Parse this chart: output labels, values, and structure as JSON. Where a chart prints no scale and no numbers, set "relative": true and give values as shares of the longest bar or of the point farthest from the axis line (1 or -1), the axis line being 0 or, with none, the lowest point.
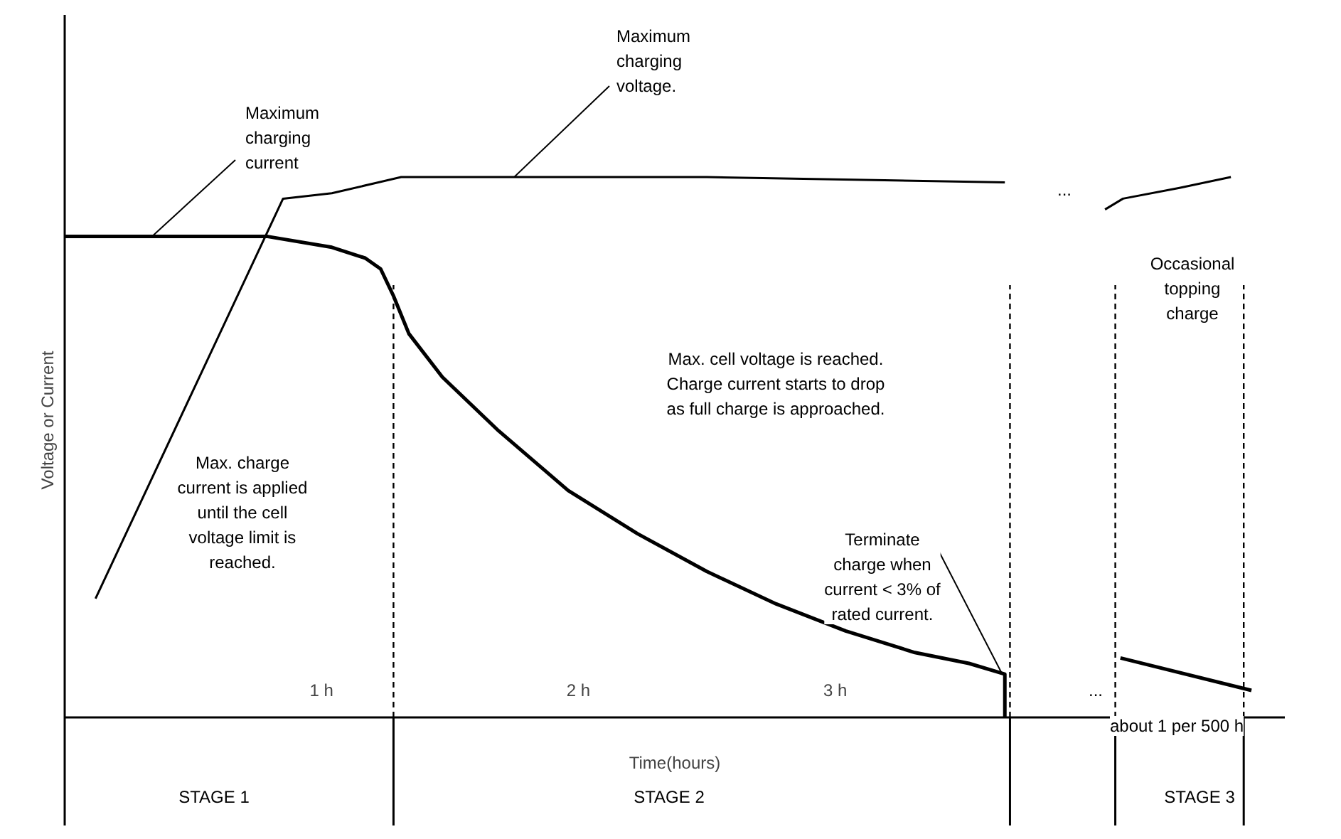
{
  "chart_data": {
    "type": "line",
    "xlabel": "Time(hours)",
    "ylabel": "Voltage or Current",
    "relative": true,
    "xlim": [
      0,
      4.75
    ],
    "xticks": [
      {
        "value": 1,
        "label": "1 h"
      },
      {
        "value": 2,
        "label": "2 h"
      },
      {
        "value": 3,
        "label": "3 h"
      }
    ],
    "series": [
      {
        "color": "#000000",
        "x": [
          0.12,
          0.85,
          1.04,
          1.31,
          2.5,
          3.66,
          3.9,
          4.05,
          4.12,
          4.34,
          4.54
        ],
        "values": [
          0.22,
          0.96,
          0.97,
          1.0,
          1.0,
          0.99,
          null,
          0.94,
          0.96,
          0.98,
          1.0
        ]
      },
      {
        "color": "#000000",
        "x": [
          0,
          0.34,
          0.79,
          1.04,
          1.17,
          1.23,
          1.28,
          1.34,
          1.47,
          1.69,
          1.96,
          2.23,
          2.5,
          2.77,
          3.04,
          3.31,
          3.52,
          3.66,
          3.66,
          3.9,
          4.11,
          4.62
        ],
        "values": [
          0.89,
          0.89,
          0.89,
          0.87,
          0.85,
          0.83,
          0.78,
          0.71,
          0.63,
          0.53,
          0.42,
          0.34,
          0.27,
          0.21,
          0.16,
          0.12,
          0.1,
          0.08,
          0.0,
          null,
          0.11,
          0.05
        ]
      }
    ],
    "ref_lines": [
      {
        "axis": "x",
        "value": 1.28,
        "line_style": "dashed"
      },
      {
        "axis": "x",
        "value": 3.68,
        "line_style": "dashed"
      },
      {
        "axis": "x",
        "value": 4.09,
        "line_style": "dashed"
      },
      {
        "axis": "x",
        "value": 4.59,
        "line_style": "dashed"
      }
    ],
    "annotations": [
      "STAGE 1",
      "STAGE 2",
      "STAGE 3",
      {
        "text": "Maximum\ncharging\ncurrent",
        "x": 0.34,
        "y": 0.89
      },
      {
        "text": "Maximum\ncharging\nvoltage.",
        "x": 1.75,
        "y": 1.0
      },
      {
        "text": "Terminate\ncharge when\ncurrent < 3% of\nrated current.",
        "x": 3.65,
        "y": 0.08
      },
      "Max. charge\ncurrent is applied\nuntil the cell\nvoltage limit is\nreached.",
      "Max. cell voltage is reached.\nCharge current starts to drop\nas full charge is approached.",
      "Occasional\ntopping\ncharge",
      "about 1 per 500 h",
      "...",
      "..."
    ]
  }
}
